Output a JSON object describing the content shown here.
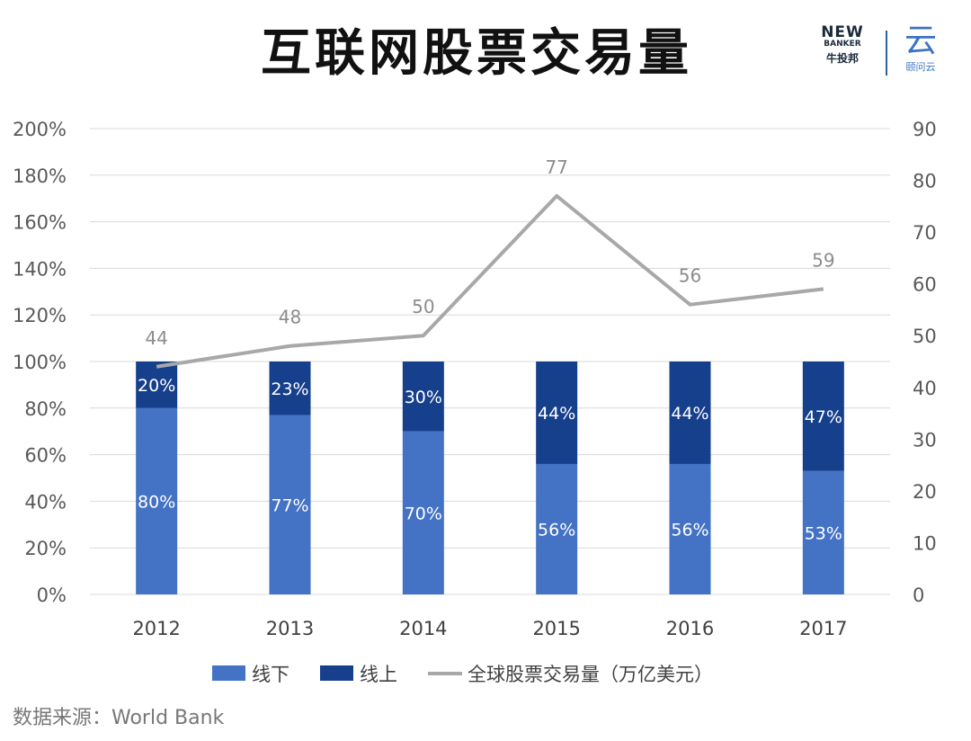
{
  "page": {
    "title": "互联网股票交易量",
    "source": "数据来源：World Bank"
  },
  "logo": {
    "brand_en": "NEW",
    "brand_en2": "BANKER",
    "brand_cn": "牛投邦",
    "partner_glyph": "云",
    "partner_name": "颐问云"
  },
  "colors": {
    "offline": "#4472c4",
    "online": "#163f8c",
    "line": "#a8a8a8",
    "grid": "#d9d9d9",
    "axis_text": "#595959",
    "point_label": "#8c8c8c"
  },
  "chart_data": {
    "type": "bar",
    "stacked": true,
    "categories": [
      "2012",
      "2013",
      "2014",
      "2015",
      "2016",
      "2017"
    ],
    "series": [
      {
        "name": "线下",
        "type": "bar",
        "values": [
          80,
          77,
          70,
          56,
          56,
          53
        ],
        "labels": [
          "80%",
          "77%",
          "70%",
          "56%",
          "56%",
          "53%"
        ]
      },
      {
        "name": "线上",
        "type": "bar",
        "values": [
          20,
          23,
          30,
          44,
          44,
          47
        ],
        "labels": [
          "20%",
          "23%",
          "30%",
          "44%",
          "44%",
          "47%"
        ]
      },
      {
        "name": "全球股票交易量（万亿美元）",
        "type": "line",
        "axis": "right",
        "values": [
          44,
          48,
          50,
          77,
          56,
          59
        ],
        "labels": [
          "44",
          "48",
          "50",
          "77",
          "56",
          "59"
        ]
      }
    ],
    "y_left": {
      "min": 0,
      "max": 200,
      "step": 20,
      "ticks": [
        "0%",
        "20%",
        "40%",
        "60%",
        "80%",
        "100%",
        "120%",
        "140%",
        "160%",
        "180%",
        "200%"
      ]
    },
    "y_right": {
      "min": 0,
      "max": 90,
      "step": 10,
      "ticks": [
        "0",
        "10",
        "20",
        "30",
        "40",
        "50",
        "60",
        "70",
        "80",
        "90"
      ]
    },
    "grid": true,
    "legend": "bottom",
    "legend_items": [
      "线下",
      "线上",
      "全球股票交易量（万亿美元）"
    ]
  }
}
